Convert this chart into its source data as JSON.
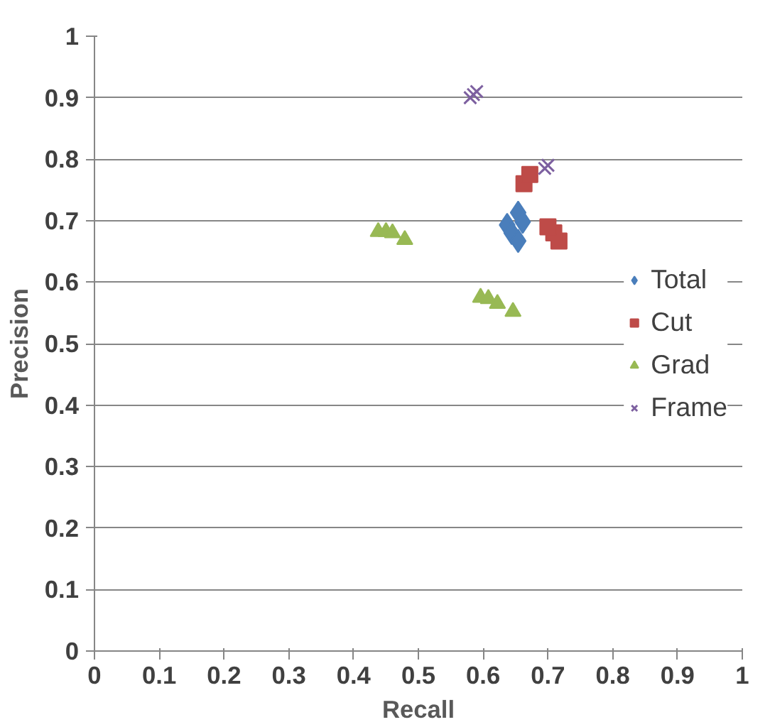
{
  "chart_data": {
    "type": "scatter",
    "xlabel": "Recall",
    "ylabel": "Precision",
    "xlim": [
      0,
      1
    ],
    "ylim": [
      0,
      1
    ],
    "xticks": [
      0,
      0.1,
      0.2,
      0.3,
      0.4,
      0.5,
      0.6,
      0.7,
      0.8,
      0.9,
      1
    ],
    "yticks": [
      0,
      0.1,
      0.2,
      0.3,
      0.4,
      0.5,
      0.6,
      0.7,
      0.8,
      0.9,
      1
    ],
    "grid": "y",
    "legend": "right",
    "series": [
      {
        "name": "Total",
        "color": "#4a7ebb",
        "marker": "diamond",
        "x": [
          0.654,
          0.637,
          0.644,
          0.654,
          0.661
        ],
        "values": [
          0.713,
          0.693,
          0.68,
          0.667,
          0.698
        ]
      },
      {
        "name": "Cut",
        "color": "#be4b48",
        "marker": "square",
        "x": [
          0.663,
          0.672,
          0.717,
          0.709,
          0.7
        ],
        "values": [
          0.76,
          0.775,
          0.667,
          0.68,
          0.69
        ]
      },
      {
        "name": "Grad",
        "color": "#98b954",
        "marker": "triangle",
        "x": [
          0.438,
          0.45,
          0.46,
          0.479,
          0.596,
          0.608,
          0.622,
          0.646
        ],
        "values": [
          0.682,
          0.682,
          0.68,
          0.669,
          0.575,
          0.573,
          0.565,
          0.552
        ]
      },
      {
        "name": "Frame",
        "color": "#7d60a0",
        "marker": "cross",
        "x": [
          0.59,
          0.585,
          0.58,
          0.7,
          0.695
        ],
        "values": [
          0.91,
          0.905,
          0.9,
          0.79,
          0.785
        ]
      }
    ]
  }
}
